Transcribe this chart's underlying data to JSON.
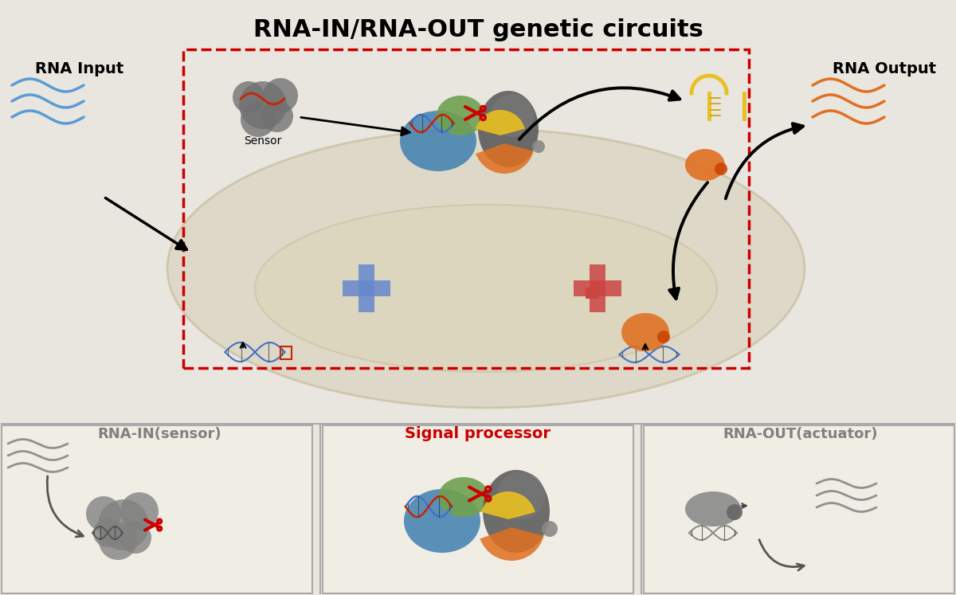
{
  "title": "RNA-IN/RNA-OUT genetic circuits",
  "title_fontsize": 22,
  "title_fontweight": "bold",
  "bg_color": "#e8e6df",
  "main_bg": "#e8e6df",
  "white_panel": "#f5f4f0",
  "rna_input_label": "RNA Input",
  "rna_output_label": "RNA Output",
  "sensor_label": "Sensor",
  "panel1_label": "RNA-IN(sensor)",
  "panel2_label": "Signal processor",
  "panel3_label": "RNA-OUT(actuator)",
  "panel2_color": "#cc0000",
  "panel_label_color": "#808080",
  "cell_color": "#d4c9a8",
  "cell_outline": "#c4b48a",
  "dashed_box_color": "#cc0000",
  "blue_wave_color": "#5b9bd5",
  "orange_wave_color": "#e07020",
  "arrow_color": "#111111",
  "blue_dna_color": "#4472c4",
  "red_dna_color": "#cc2200",
  "green_blob_color": "#70a050",
  "blue_blob_color": "#4080b0",
  "gray_blob_color": "#707070",
  "yellow_color": "#e8c020",
  "orange_color": "#e07020",
  "red_scissors_color": "#cc0000",
  "light_orange_rna": "#e08040",
  "dark_gray": "#404040"
}
